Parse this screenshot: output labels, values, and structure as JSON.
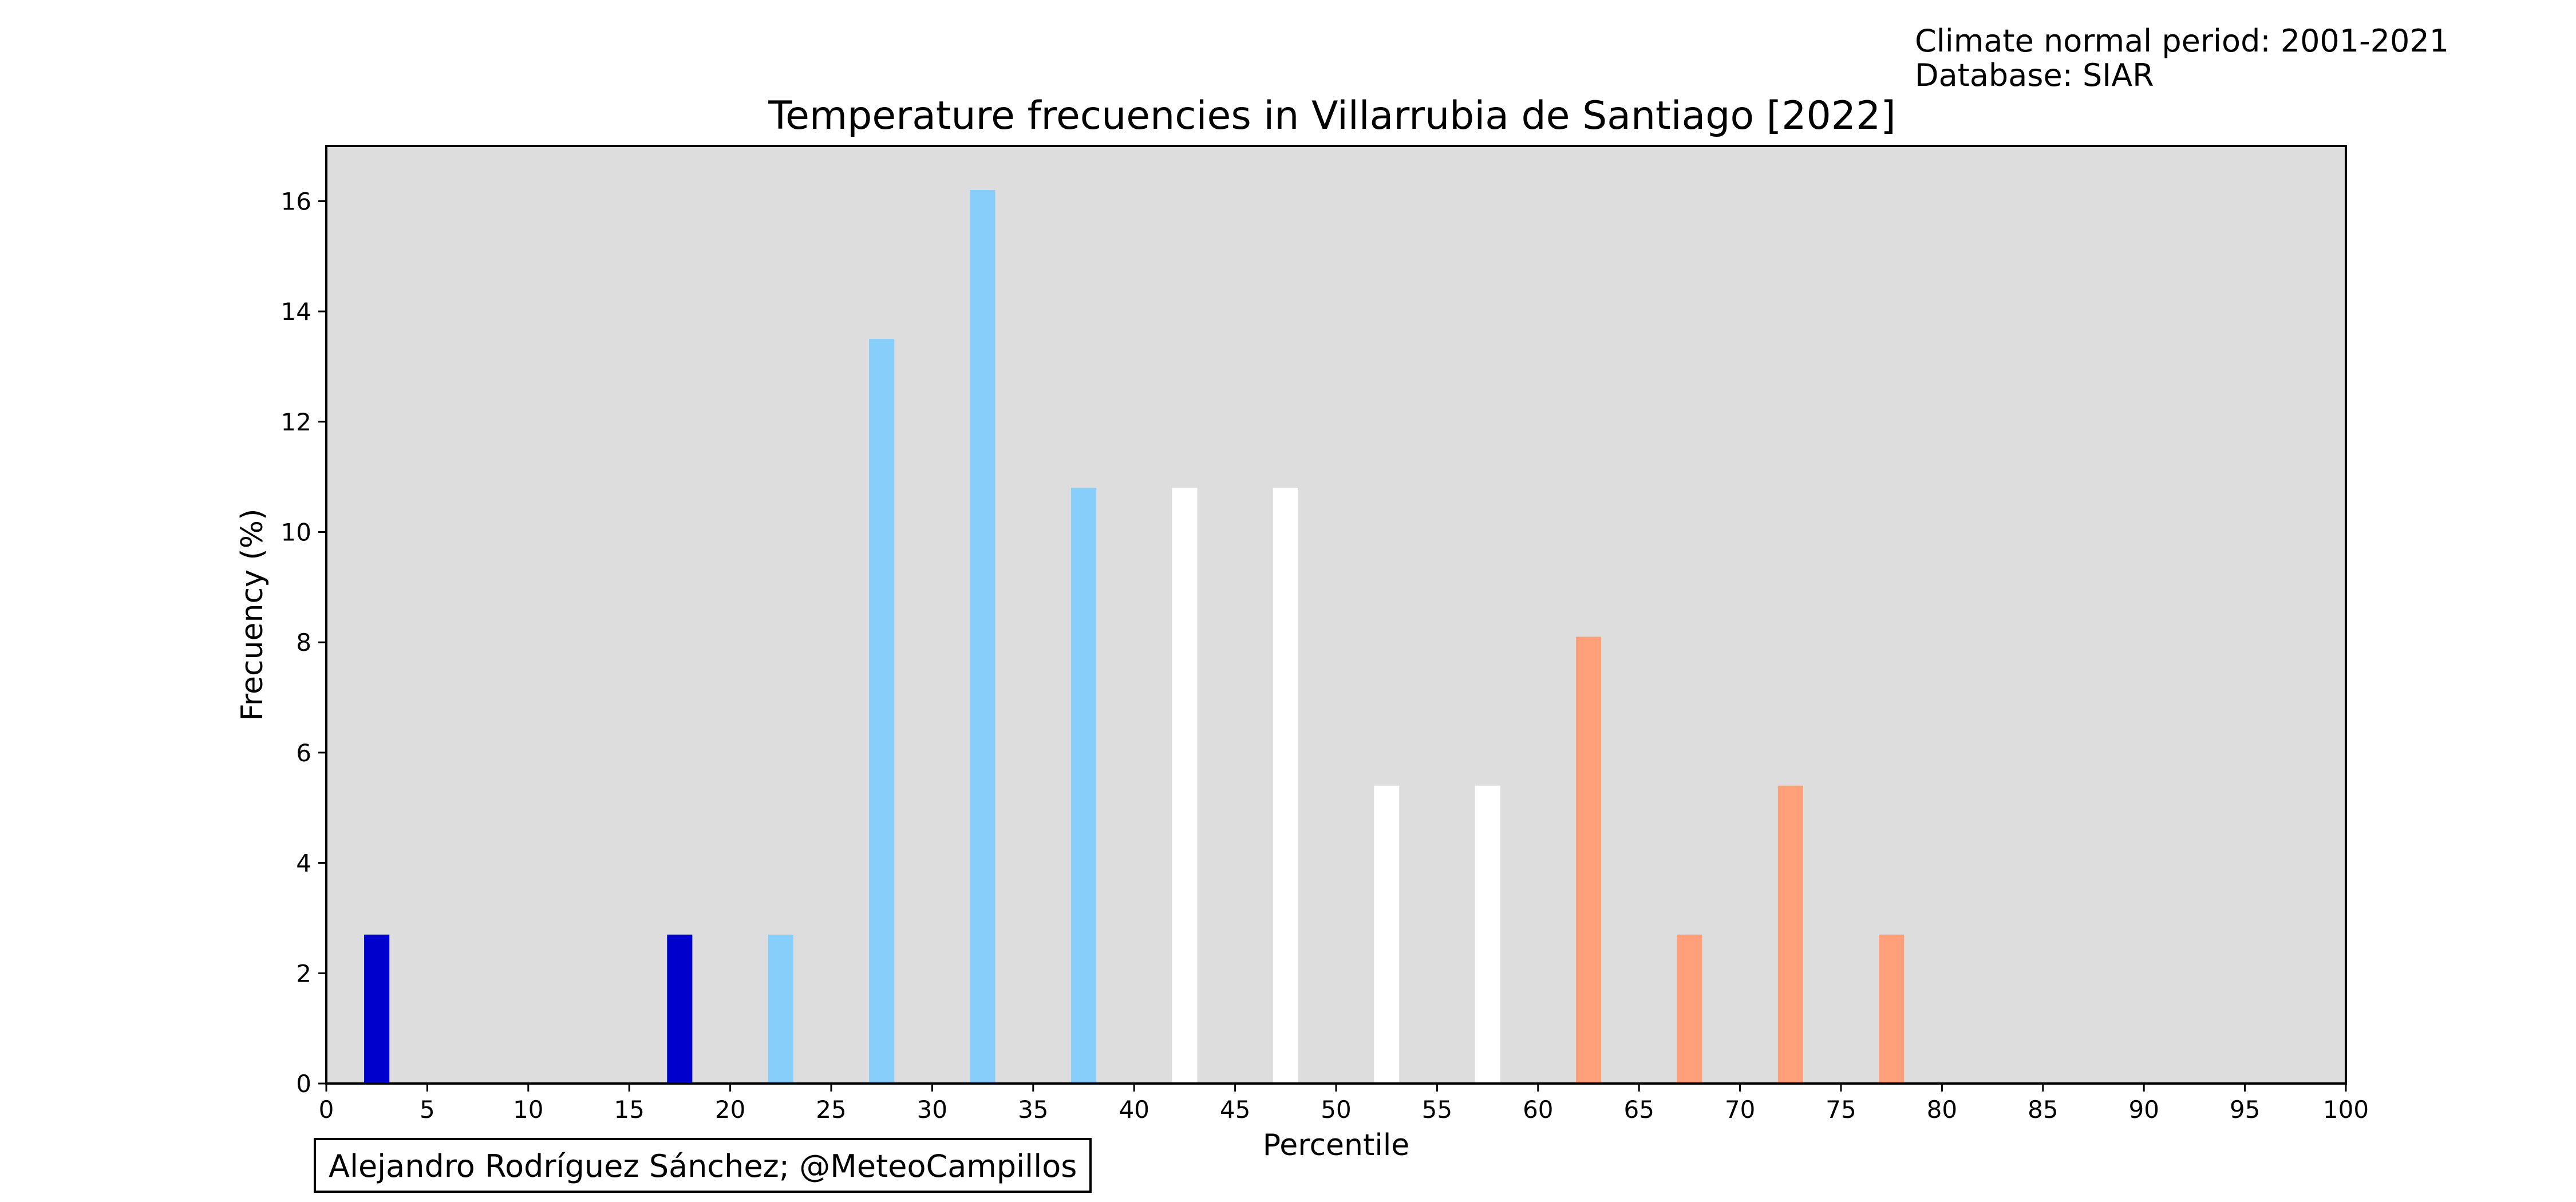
{
  "header": {
    "period_text": "Climate normal period: 2001-2021",
    "database_text": "Database: SIAR"
  },
  "credit": "Alejandro Rodríguez Sánchez; @MeteoCampillos",
  "colors": {
    "background": "#dddddd",
    "very_cold": "#0000cd",
    "cold": "#87cefa",
    "normal": "#ffffff",
    "warm": "#ffa07a"
  },
  "chart_data": {
    "type": "bar",
    "title": "Temperature frecuencies in Villarrubia de Santiago [2022]",
    "xlabel": "Percentile",
    "ylabel": "Frecuency (%)",
    "xlim": [
      0,
      100
    ],
    "ylim": [
      0,
      17
    ],
    "grid": false,
    "x_ticks": [
      0,
      5,
      10,
      15,
      20,
      25,
      30,
      35,
      40,
      45,
      50,
      55,
      60,
      65,
      70,
      75,
      80,
      85,
      90,
      95,
      100
    ],
    "y_ticks": [
      0,
      2,
      4,
      6,
      8,
      10,
      12,
      14,
      16
    ],
    "bar_width": 1.25,
    "bars": [
      {
        "x": 2.5,
        "value": 2.7,
        "color": "#0000cd"
      },
      {
        "x": 17.5,
        "value": 2.7,
        "color": "#0000cd"
      },
      {
        "x": 22.5,
        "value": 2.7,
        "color": "#87cefa"
      },
      {
        "x": 27.5,
        "value": 13.5,
        "color": "#87cefa"
      },
      {
        "x": 32.5,
        "value": 16.2,
        "color": "#87cefa"
      },
      {
        "x": 37.5,
        "value": 10.8,
        "color": "#87cefa"
      },
      {
        "x": 42.5,
        "value": 10.8,
        "color": "#ffffff"
      },
      {
        "x": 47.5,
        "value": 10.8,
        "color": "#ffffff"
      },
      {
        "x": 52.5,
        "value": 5.4,
        "color": "#ffffff"
      },
      {
        "x": 57.5,
        "value": 5.4,
        "color": "#ffffff"
      },
      {
        "x": 62.5,
        "value": 8.1,
        "color": "#ffa07a"
      },
      {
        "x": 67.5,
        "value": 2.7,
        "color": "#ffa07a"
      },
      {
        "x": 72.5,
        "value": 5.4,
        "color": "#ffa07a"
      },
      {
        "x": 77.5,
        "value": 2.7,
        "color": "#ffa07a"
      }
    ]
  }
}
